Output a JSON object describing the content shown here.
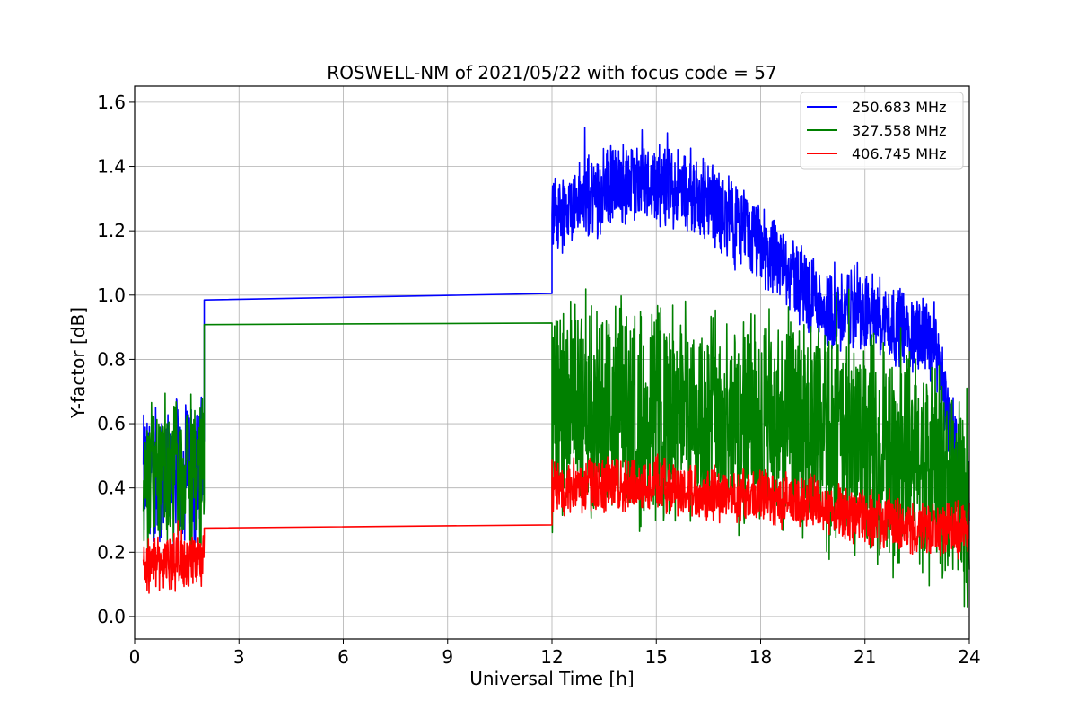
{
  "chart_data": {
    "type": "line",
    "title": "ROSWELL-NM of 2021/05/22 with focus code = 57",
    "xlabel": "Universal Time [h]",
    "ylabel": "Y-factor [dB]",
    "xlim": [
      0,
      24
    ],
    "ylim": [
      -0.07,
      1.65
    ],
    "xticks": [
      0,
      3,
      6,
      9,
      12,
      15,
      18,
      21,
      24
    ],
    "yticks": [
      0.0,
      0.2,
      0.4,
      0.6,
      0.8,
      1.0,
      1.2,
      1.4,
      1.6
    ],
    "grid": true,
    "legend_position": "top-right",
    "series": [
      {
        "name": "250.683 MHz",
        "color": "#0000ff",
        "description_points": [
          {
            "segment": "noisy",
            "x": [
              0.25,
              2.0
            ],
            "center": [
              0.42,
              0.48
            ],
            "amp": [
              0.2,
              0.22
            ]
          },
          {
            "line": [
              [
                2.0,
                0.985
              ],
              [
                12.0,
                1.005
              ]
            ]
          },
          {
            "segment": "noisy",
            "x": [
              12.0,
              24.0
            ],
            "profile": [
              [
                12.0,
                1.25
              ],
              [
                13.0,
                1.3
              ],
              [
                14.0,
                1.35
              ],
              [
                15.0,
                1.35
              ],
              [
                16.0,
                1.32
              ],
              [
                17.0,
                1.25
              ],
              [
                18.0,
                1.15
              ],
              [
                19.0,
                1.05
              ],
              [
                20.0,
                0.95
              ],
              [
                21.0,
                0.95
              ],
              [
                22.0,
                0.9
              ],
              [
                23.0,
                0.85
              ],
              [
                23.8,
                0.4
              ]
            ],
            "amp": 0.12
          }
        ]
      },
      {
        "name": "327.558 MHz",
        "color": "#008000",
        "description_points": [
          {
            "segment": "noisy",
            "x": [
              0.25,
              2.0
            ],
            "center": [
              0.42,
              0.48
            ],
            "amp": [
              0.22,
              0.24
            ]
          },
          {
            "line": [
              [
                2.0,
                0.908
              ],
              [
                12.0,
                0.913
              ]
            ]
          },
          {
            "segment": "noisy",
            "x": [
              12.0,
              24.0
            ],
            "profile": [
              [
                12.0,
                0.63
              ],
              [
                13.0,
                0.64
              ],
              [
                15.0,
                0.63
              ],
              [
                17.0,
                0.61
              ],
              [
                19.0,
                0.58
              ],
              [
                21.0,
                0.52
              ],
              [
                23.0,
                0.47
              ],
              [
                24.0,
                0.35
              ]
            ],
            "amp": 0.32
          }
        ]
      },
      {
        "name": "406.745 MHz",
        "color": "#ff0000",
        "description_points": [
          {
            "segment": "noisy",
            "x": [
              0.25,
              2.0
            ],
            "center": [
              0.16,
              0.18
            ],
            "amp": [
              0.08,
              0.09
            ]
          },
          {
            "line": [
              [
                2.0,
                0.275
              ],
              [
                12.0,
                0.285
              ]
            ]
          },
          {
            "segment": "noisy",
            "x": [
              12.0,
              24.0
            ],
            "profile": [
              [
                12.0,
                0.4
              ],
              [
                13.0,
                0.41
              ],
              [
                15.0,
                0.41
              ],
              [
                17.0,
                0.38
              ],
              [
                19.0,
                0.36
              ],
              [
                21.0,
                0.31
              ],
              [
                22.5,
                0.27
              ],
              [
                24.0,
                0.27
              ]
            ],
            "amp": 0.08
          }
        ]
      }
    ]
  }
}
